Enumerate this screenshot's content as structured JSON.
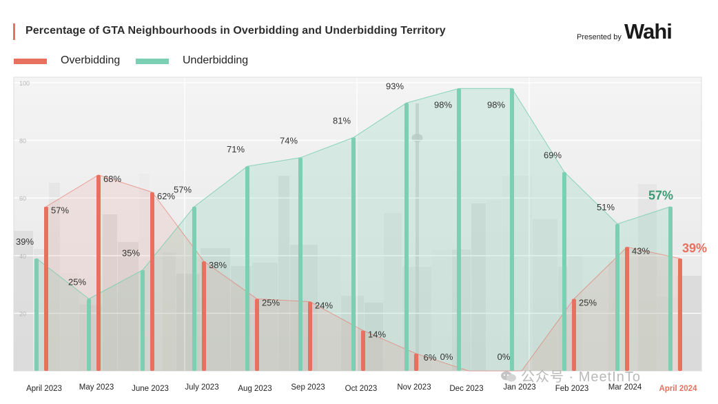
{
  "header": {
    "title": "Percentage of GTA Neighbourhoods in Overbidding and Underbidding Territory",
    "presented_by": "Presented by",
    "logo_text": "Wahi",
    "accent_color": "#e8705f"
  },
  "watermark": {
    "text": "公众号 · MeetInTo"
  },
  "chart_data": {
    "type": "bar",
    "title": "Percentage of GTA Neighbourhoods in Overbidding and Underbidding Territory",
    "xlabel": "",
    "ylabel": "",
    "ylim": [
      0,
      100
    ],
    "yticks": [
      "20",
      "40",
      "60",
      "80",
      "100"
    ],
    "grid": true,
    "legend_position": "top-left",
    "categories": [
      "April 2023",
      "May 2023",
      "June 2023",
      "July 2023",
      "Aug 2023",
      "Sep 2023",
      "Oct 2023",
      "Nov 2023",
      "Dec 2023",
      "Jan 2023",
      "Feb 2023",
      "Mar 2024",
      "April 2024"
    ],
    "highlight_last_category": true,
    "series": [
      {
        "name": "Overbidding",
        "color": "#e8705f",
        "values": [
          57,
          68,
          62,
          38,
          25,
          24,
          14,
          6,
          0,
          0,
          25,
          43,
          39
        ],
        "labels": [
          "57%",
          "68%",
          "62%",
          "38%",
          "25%",
          "24%",
          "14%",
          "6%",
          "0%",
          "0%",
          "25%",
          "43%",
          "39%"
        ]
      },
      {
        "name": "Underbidding",
        "color": "#7ccfb2",
        "values": [
          39,
          25,
          35,
          57,
          71,
          74,
          81,
          93,
          98,
          98,
          69,
          51,
          57
        ],
        "labels": [
          "39%",
          "25%",
          "35%",
          "57%",
          "71%",
          "74%",
          "81%",
          "93%",
          "98%",
          "98%",
          "69%",
          "51%",
          "57%"
        ]
      }
    ]
  }
}
